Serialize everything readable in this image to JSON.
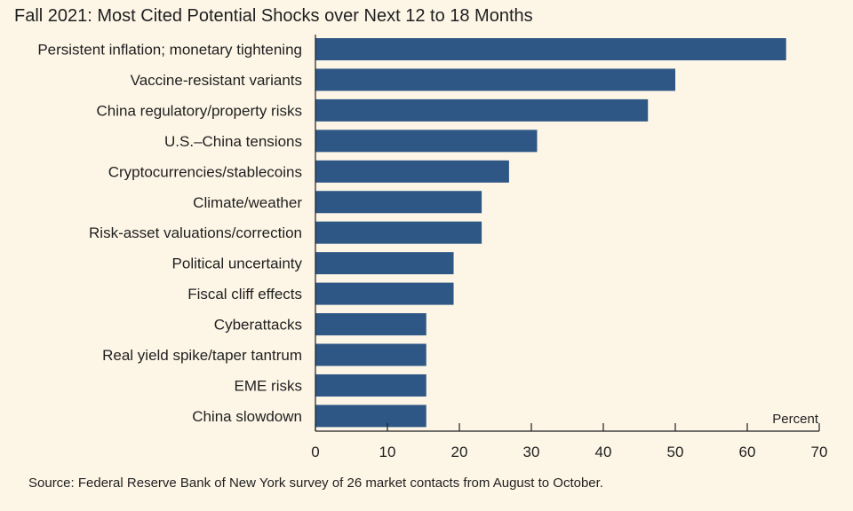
{
  "title": "Fall 2021: Most Cited Potential Shocks over Next 12 to 18 Months",
  "source": "Source: Federal Reserve Bank of New York survey of 26 market contacts from August to October.",
  "colors": {
    "background": "#fdf6e7",
    "bar": "#2e5785",
    "text": "#1f1f1f"
  },
  "chart_data": {
    "type": "bar",
    "orientation": "horizontal",
    "categories": [
      "Persistent inflation; monetary tightening",
      "Vaccine-resistant variants",
      "China regulatory/property risks",
      "U.S.–China tensions",
      "Cryptocurrencies/stablecoins",
      "Climate/weather",
      "Risk-asset valuations/correction",
      "Political uncertainty",
      "Fiscal cliff effects",
      "Cyberattacks",
      "Real yield spike/taper tantrum",
      "EME risks",
      "China slowdown"
    ],
    "values": [
      65.4,
      50.0,
      46.2,
      30.8,
      26.9,
      23.1,
      23.1,
      19.2,
      19.2,
      15.4,
      15.4,
      15.4,
      15.4
    ],
    "xlim": [
      0,
      70
    ],
    "xticks": [
      0,
      10,
      20,
      30,
      40,
      50,
      60,
      70
    ],
    "tick_labels": [
      "0",
      "10",
      "20",
      "30",
      "40",
      "50",
      "60",
      "70"
    ],
    "unit_label": "Percent",
    "grid": false,
    "legend": "none"
  }
}
